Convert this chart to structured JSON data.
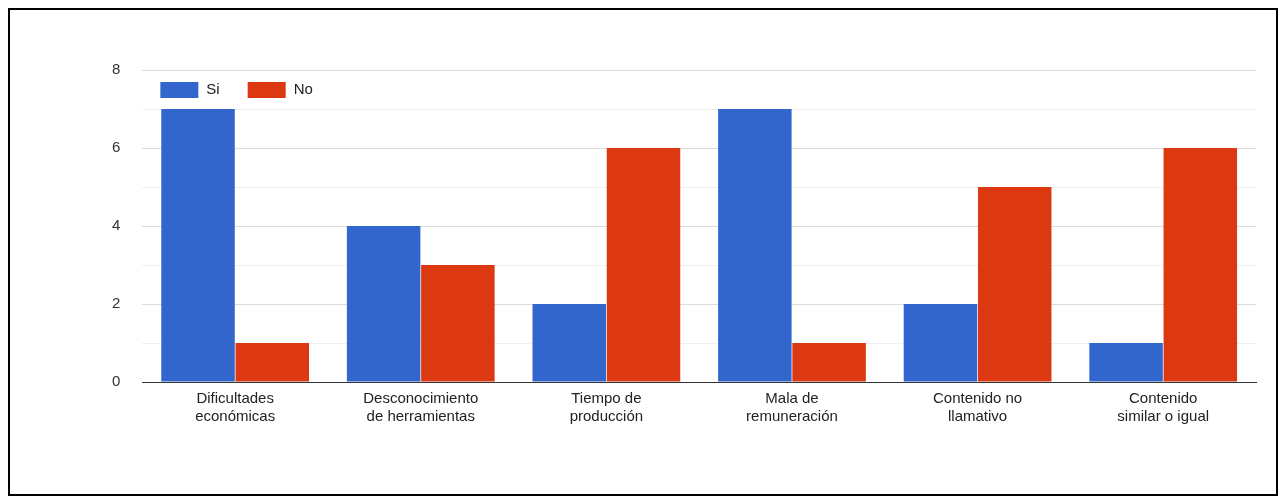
{
  "chart_data": {
    "type": "bar",
    "categories": [
      "Dificultades económicas",
      "Desconocimiento de herramientas",
      "Tiempo de producción",
      "Mala de remuneración",
      "Contenido no llamativo",
      "Contenido similar o igual"
    ],
    "series": [
      {
        "name": "Si",
        "color": "#3366cc",
        "values": [
          7,
          4,
          2,
          7,
          2,
          1
        ]
      },
      {
        "name": "No",
        "color": "#dc3912",
        "values": [
          1,
          3,
          6,
          1,
          5,
          6
        ]
      }
    ],
    "ylim": [
      0,
      8
    ],
    "yticks": [
      0,
      {
        "value": 1,
        "label": null
      },
      2,
      {
        "value": 3,
        "label": null
      },
      4,
      {
        "value": 5,
        "label": null
      },
      6,
      {
        "value": 7,
        "label": null
      },
      8
    ],
    "grid": "y",
    "legend": "top left"
  }
}
